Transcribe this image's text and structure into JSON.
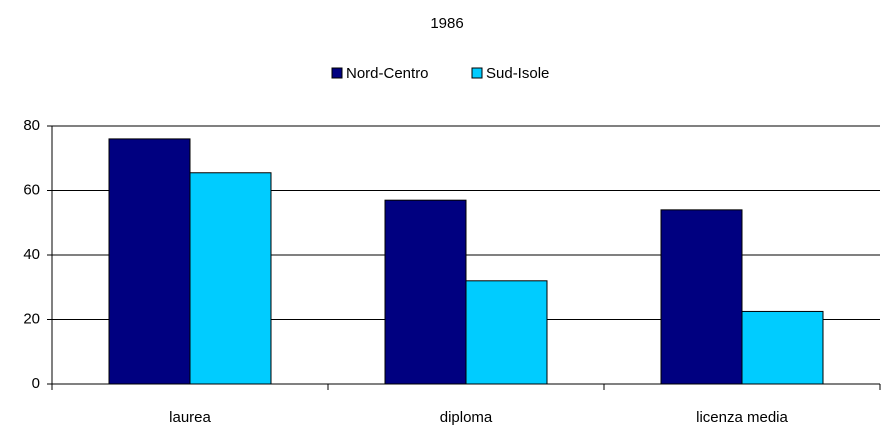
{
  "chart_data": {
    "type": "bar",
    "title": "1986",
    "categories": [
      "laurea",
      "diploma",
      "licenza media"
    ],
    "series": [
      {
        "name": "Nord-Centro",
        "color": "#000080",
        "values": [
          76,
          57,
          54
        ]
      },
      {
        "name": "Sud-Isole",
        "color": "#00ccff",
        "values": [
          65.5,
          32,
          22.5
        ]
      }
    ],
    "ylim": [
      0,
      80
    ],
    "yticks": [
      0,
      20,
      40,
      60,
      80
    ],
    "grid": true,
    "legend": "top"
  }
}
